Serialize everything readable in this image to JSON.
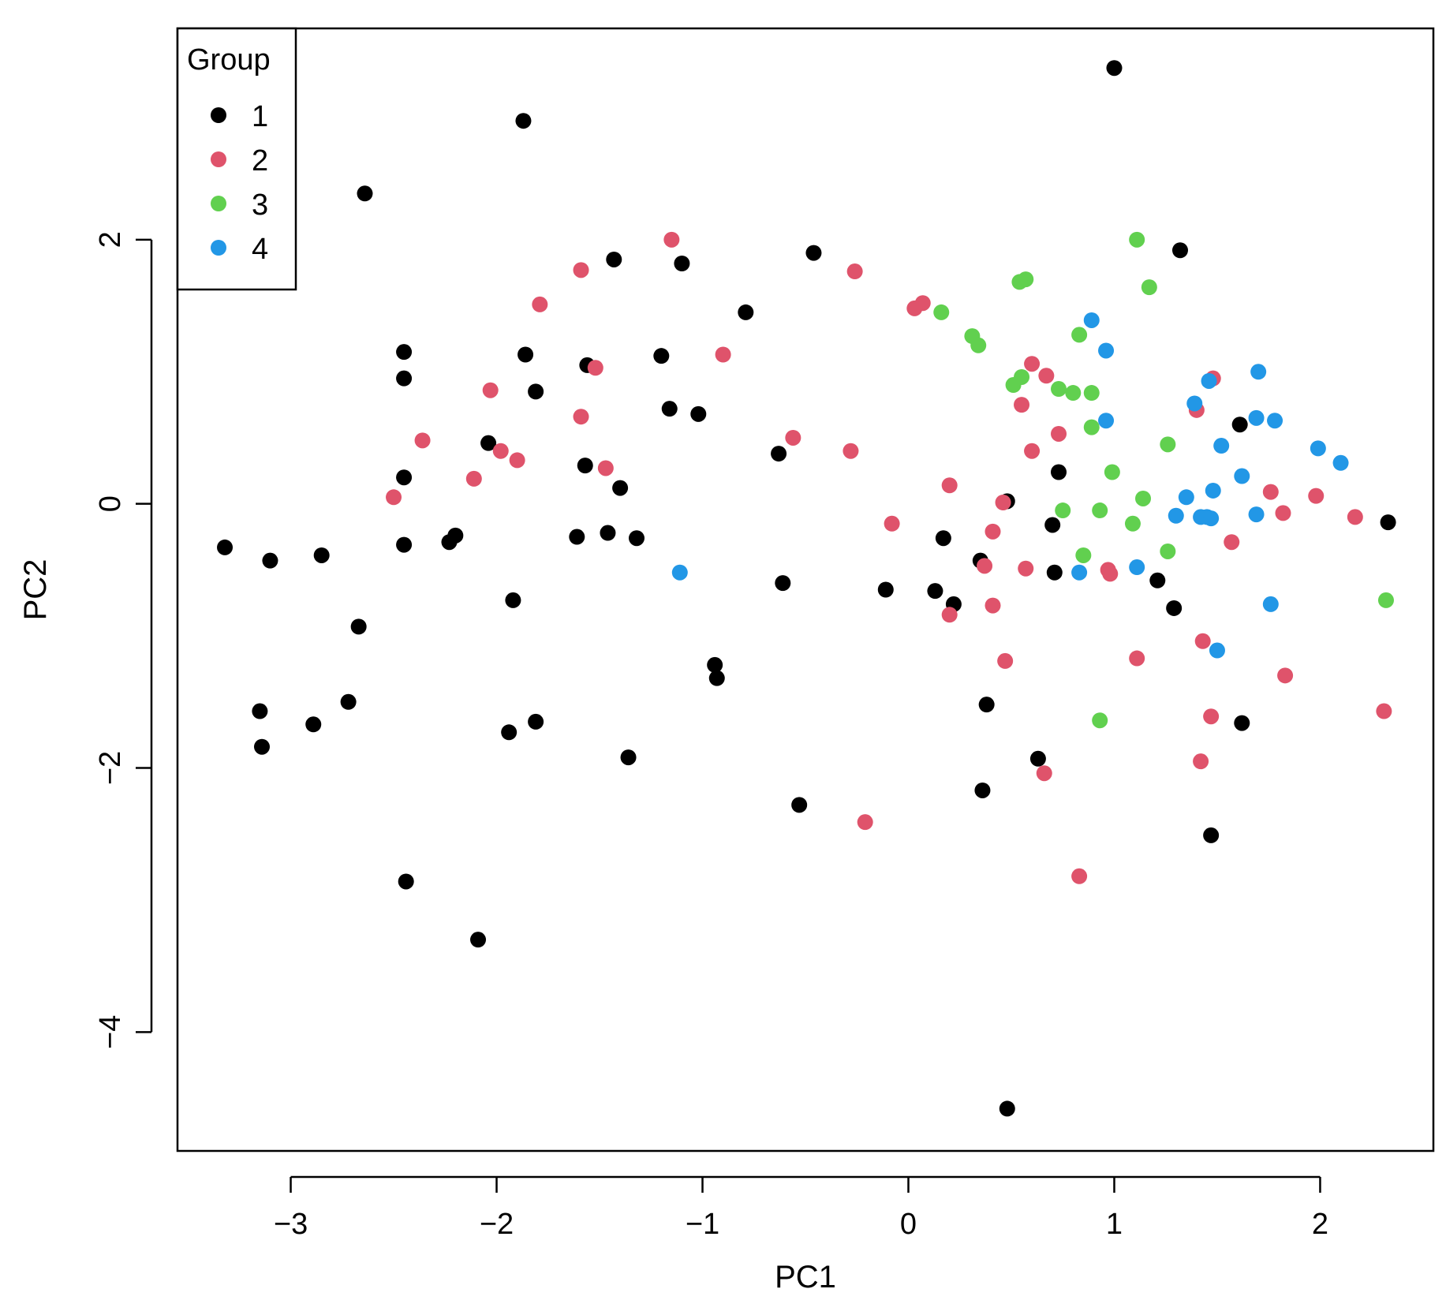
{
  "chart_data": {
    "type": "scatter",
    "xlabel": "PC1",
    "ylabel": "PC2",
    "xlim": [
      -3.55,
      2.55
    ],
    "ylim": [
      -4.9,
      3.6
    ],
    "xticks": [
      -3,
      -2,
      -1,
      0,
      1,
      2
    ],
    "yticks": [
      -4,
      -2,
      0,
      2
    ],
    "grid": false,
    "legend": {
      "title": "Group",
      "position": "top-left",
      "entries": [
        "1",
        "2",
        "3",
        "4"
      ]
    },
    "colors": {
      "1": "#000000",
      "2": "#DF536B",
      "3": "#61D04F",
      "4": "#2297E6"
    },
    "series": [
      {
        "name": "1",
        "points": [
          [
            1.0,
            3.3
          ],
          [
            -1.87,
            2.9
          ],
          [
            -2.64,
            2.35
          ],
          [
            1.32,
            1.92
          ],
          [
            -0.46,
            1.9
          ],
          [
            -1.43,
            1.85
          ],
          [
            -1.1,
            1.82
          ],
          [
            -0.79,
            1.45
          ],
          [
            -2.45,
            1.15
          ],
          [
            -1.86,
            1.13
          ],
          [
            -1.2,
            1.12
          ],
          [
            -1.56,
            1.05
          ],
          [
            -2.45,
            0.95
          ],
          [
            -1.81,
            0.85
          ],
          [
            -1.16,
            0.72
          ],
          [
            -1.02,
            0.68
          ],
          [
            1.61,
            0.6
          ],
          [
            -2.04,
            0.46
          ],
          [
            -0.63,
            0.38
          ],
          [
            -1.57,
            0.29
          ],
          [
            -2.45,
            0.2
          ],
          [
            0.73,
            0.24
          ],
          [
            -1.4,
            0.12
          ],
          [
            0.48,
            0.02
          ],
          [
            2.33,
            -0.14
          ],
          [
            0.7,
            -0.16
          ],
          [
            -2.2,
            -0.24
          ],
          [
            -2.23,
            -0.29
          ],
          [
            -1.61,
            -0.25
          ],
          [
            -1.46,
            -0.22
          ],
          [
            -1.32,
            -0.26
          ],
          [
            0.17,
            -0.26
          ],
          [
            -3.32,
            -0.33
          ],
          [
            -3.1,
            -0.43
          ],
          [
            -2.45,
            -0.31
          ],
          [
            -2.85,
            -0.39
          ],
          [
            0.35,
            -0.43
          ],
          [
            0.71,
            -0.52
          ],
          [
            1.21,
            -0.58
          ],
          [
            -0.61,
            -0.6
          ],
          [
            -0.11,
            -0.65
          ],
          [
            0.13,
            -0.66
          ],
          [
            0.22,
            -0.76
          ],
          [
            -1.92,
            -0.73
          ],
          [
            1.29,
            -0.79
          ],
          [
            -2.67,
            -0.93
          ],
          [
            -0.94,
            -1.22
          ],
          [
            -0.93,
            -1.32
          ],
          [
            -2.72,
            -1.5
          ],
          [
            -3.15,
            -1.57
          ],
          [
            0.38,
            -1.52
          ],
          [
            -2.89,
            -1.67
          ],
          [
            -1.81,
            -1.65
          ],
          [
            1.62,
            -1.66
          ],
          [
            -1.94,
            -1.73
          ],
          [
            -3.14,
            -1.84
          ],
          [
            -1.36,
            -1.92
          ],
          [
            0.63,
            -1.93
          ],
          [
            0.36,
            -2.17
          ],
          [
            -0.53,
            -2.28
          ],
          [
            1.47,
            -2.51
          ],
          [
            -2.44,
            -2.86
          ],
          [
            -2.09,
            -3.3
          ],
          [
            0.48,
            -4.58
          ]
        ]
      },
      {
        "name": "2",
        "points": [
          [
            -1.15,
            2.0
          ],
          [
            -1.59,
            1.77
          ],
          [
            -0.26,
            1.76
          ],
          [
            -1.79,
            1.51
          ],
          [
            0.07,
            1.52
          ],
          [
            0.03,
            1.48
          ],
          [
            -0.9,
            1.13
          ],
          [
            -1.52,
            1.03
          ],
          [
            0.6,
            1.06
          ],
          [
            0.67,
            0.97
          ],
          [
            1.48,
            0.95
          ],
          [
            -2.03,
            0.86
          ],
          [
            0.55,
            0.75
          ],
          [
            1.4,
            0.71
          ],
          [
            -1.59,
            0.66
          ],
          [
            0.73,
            0.53
          ],
          [
            -0.56,
            0.5
          ],
          [
            -2.36,
            0.48
          ],
          [
            -0.28,
            0.4
          ],
          [
            0.6,
            0.4
          ],
          [
            -1.98,
            0.4
          ],
          [
            -1.9,
            0.33
          ],
          [
            -1.47,
            0.27
          ],
          [
            -2.11,
            0.19
          ],
          [
            0.2,
            0.14
          ],
          [
            1.76,
            0.09
          ],
          [
            1.98,
            0.06
          ],
          [
            -2.5,
            0.05
          ],
          [
            0.46,
            0.01
          ],
          [
            1.82,
            -0.07
          ],
          [
            2.17,
            -0.1
          ],
          [
            -0.08,
            -0.15
          ],
          [
            0.41,
            -0.21
          ],
          [
            1.57,
            -0.29
          ],
          [
            0.37,
            -0.47
          ],
          [
            0.57,
            -0.49
          ],
          [
            0.97,
            -0.5
          ],
          [
            0.98,
            -0.53
          ],
          [
            0.41,
            -0.77
          ],
          [
            0.2,
            -0.84
          ],
          [
            1.43,
            -1.04
          ],
          [
            1.11,
            -1.17
          ],
          [
            0.47,
            -1.19
          ],
          [
            1.83,
            -1.3
          ],
          [
            2.31,
            -1.57
          ],
          [
            1.47,
            -1.61
          ],
          [
            1.42,
            -1.95
          ],
          [
            0.66,
            -2.04
          ],
          [
            -0.21,
            -2.41
          ],
          [
            0.83,
            -2.82
          ]
        ]
      },
      {
        "name": "3",
        "points": [
          [
            1.11,
            2.0
          ],
          [
            0.57,
            1.7
          ],
          [
            0.54,
            1.68
          ],
          [
            1.17,
            1.64
          ],
          [
            0.16,
            1.45
          ],
          [
            0.83,
            1.28
          ],
          [
            0.31,
            1.27
          ],
          [
            0.34,
            1.2
          ],
          [
            0.55,
            0.96
          ],
          [
            0.51,
            0.9
          ],
          [
            0.73,
            0.87
          ],
          [
            0.8,
            0.84
          ],
          [
            0.89,
            0.84
          ],
          [
            0.89,
            0.58
          ],
          [
            1.26,
            0.45
          ],
          [
            0.99,
            0.24
          ],
          [
            1.14,
            0.04
          ],
          [
            0.75,
            -0.05
          ],
          [
            0.93,
            -0.05
          ],
          [
            1.09,
            -0.15
          ],
          [
            1.26,
            -0.36
          ],
          [
            0.85,
            -0.39
          ],
          [
            2.32,
            -0.73
          ],
          [
            0.93,
            -1.64
          ]
        ]
      },
      {
        "name": "4",
        "points": [
          [
            0.89,
            1.39
          ],
          [
            0.96,
            1.16
          ],
          [
            1.7,
            1.0
          ],
          [
            1.46,
            0.93
          ],
          [
            1.39,
            0.76
          ],
          [
            1.69,
            0.65
          ],
          [
            1.78,
            0.63
          ],
          [
            0.96,
            0.63
          ],
          [
            1.52,
            0.44
          ],
          [
            1.99,
            0.42
          ],
          [
            2.1,
            0.31
          ],
          [
            1.62,
            0.21
          ],
          [
            1.48,
            0.1
          ],
          [
            1.35,
            0.05
          ],
          [
            1.3,
            -0.09
          ],
          [
            1.42,
            -0.1
          ],
          [
            1.45,
            -0.1
          ],
          [
            1.47,
            -0.11
          ],
          [
            1.69,
            -0.08
          ],
          [
            -1.11,
            -0.52
          ],
          [
            0.83,
            -0.52
          ],
          [
            1.11,
            -0.48
          ],
          [
            1.76,
            -0.76
          ],
          [
            1.5,
            -1.11
          ]
        ]
      }
    ]
  }
}
